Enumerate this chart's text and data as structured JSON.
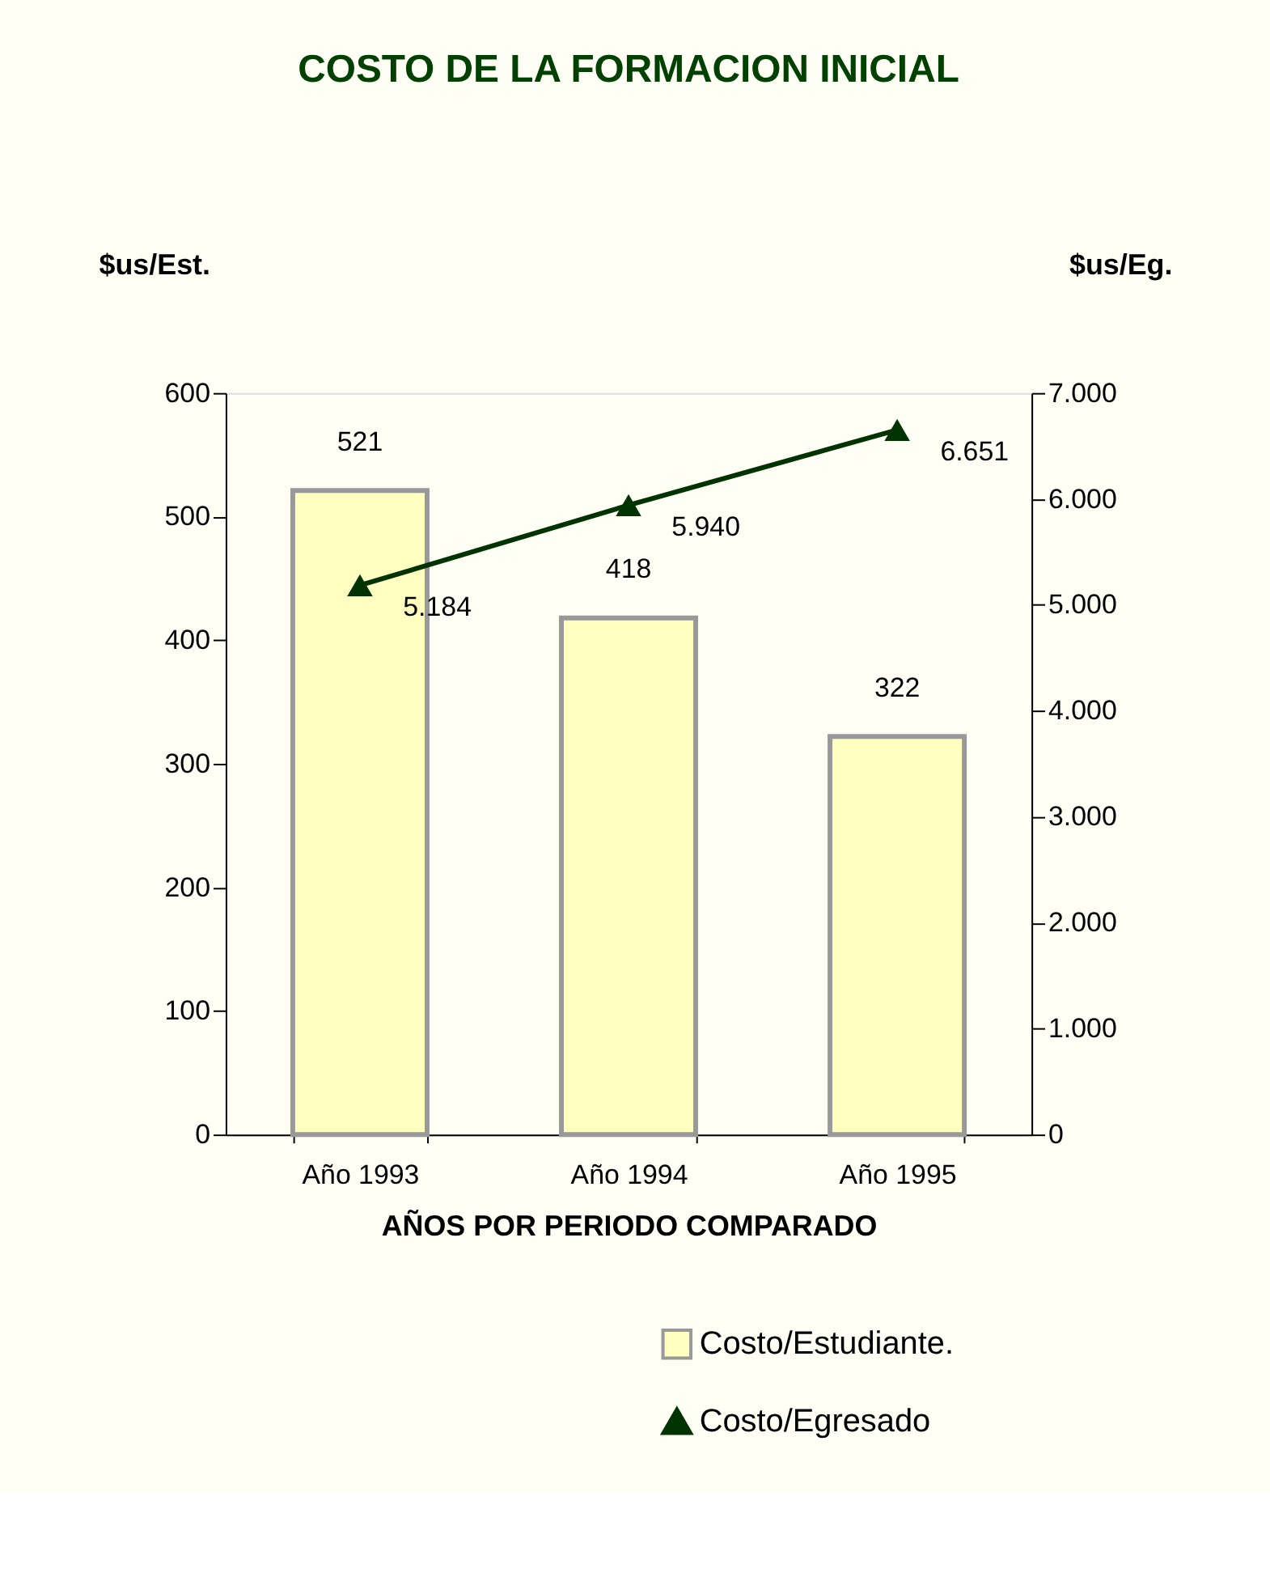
{
  "chart_data": {
    "type": "bar",
    "title": "COSTO DE LA FORMACION INICIAL",
    "xlabel": "AÑOS POR PERIODO COMPARADO",
    "ylabel": "$us/Est.",
    "y2label": "$us/Eg.",
    "categories": [
      "Año 1993",
      "Año 1994",
      "Año 1995"
    ],
    "series": [
      {
        "name": "Costo/Estudiante.",
        "color": "#ffffc0",
        "values": [
          521,
          418,
          322
        ]
      },
      {
        "name": "Costo/Egresado",
        "type": "line",
        "axis": "y2",
        "color": "#003300",
        "values": [
          5184,
          5940,
          6651
        ],
        "marker": "triangle",
        "line_style": "solid",
        "value_labels": [
          "5.184",
          "5.940",
          "6.651"
        ]
      }
    ],
    "data_labels": true,
    "ylim": [
      0,
      600
    ],
    "yticks": [
      0,
      100,
      200,
      300,
      400,
      500,
      600
    ],
    "y2lim": [
      0,
      7000
    ],
    "y2ticks": [
      {
        "value": 0,
        "label": "0"
      },
      {
        "value": 1000,
        "label": "1.000"
      },
      {
        "value": 2000,
        "label": "2.000"
      },
      {
        "value": 3000,
        "label": "3.000"
      },
      {
        "value": 4000,
        "label": "4.000"
      },
      {
        "value": 5000,
        "label": "5.000"
      },
      {
        "value": 6000,
        "label": "6.000"
      },
      {
        "value": 7000,
        "label": "7.000"
      }
    ],
    "grid": false,
    "legend": "bottom right"
  }
}
